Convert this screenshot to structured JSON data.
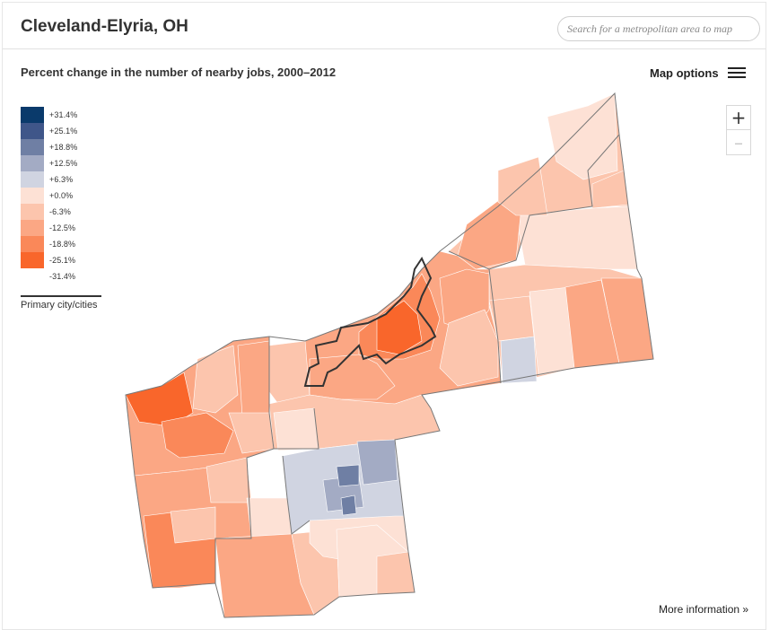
{
  "header": {
    "title": "Cleveland-Elyria, OH",
    "search_placeholder": "Search for a metropolitan area to map"
  },
  "map": {
    "subtitle": "Percent change in the number of nearby jobs, 2000–2012",
    "options_label": "Map options",
    "zoom_in_label": "+",
    "zoom_out_label": "–",
    "more_info_label": "More information »",
    "legend": [
      {
        "label": "+31.4%",
        "color": "#0a3a6b"
      },
      {
        "label": "+25.1%",
        "color": "#3f5689"
      },
      {
        "label": "+18.8%",
        "color": "#6f7fa4"
      },
      {
        "label": "+12.5%",
        "color": "#a3abc4"
      },
      {
        "label": "+6.3%",
        "color": "#d0d4e1"
      },
      {
        "label": "+0.0%",
        "color": "#fde1d5"
      },
      {
        "label": "-6.3%",
        "color": "#fcc5ad"
      },
      {
        "label": "-12.5%",
        "color": "#fba784"
      },
      {
        "label": "-18.8%",
        "color": "#fa8859"
      },
      {
        "label": "-25.1%",
        "color": "#f9662b"
      },
      {
        "label": "-31.4%",
        "color": "#ffffff"
      }
    ],
    "primary_city_label": "Primary city/cities"
  }
}
